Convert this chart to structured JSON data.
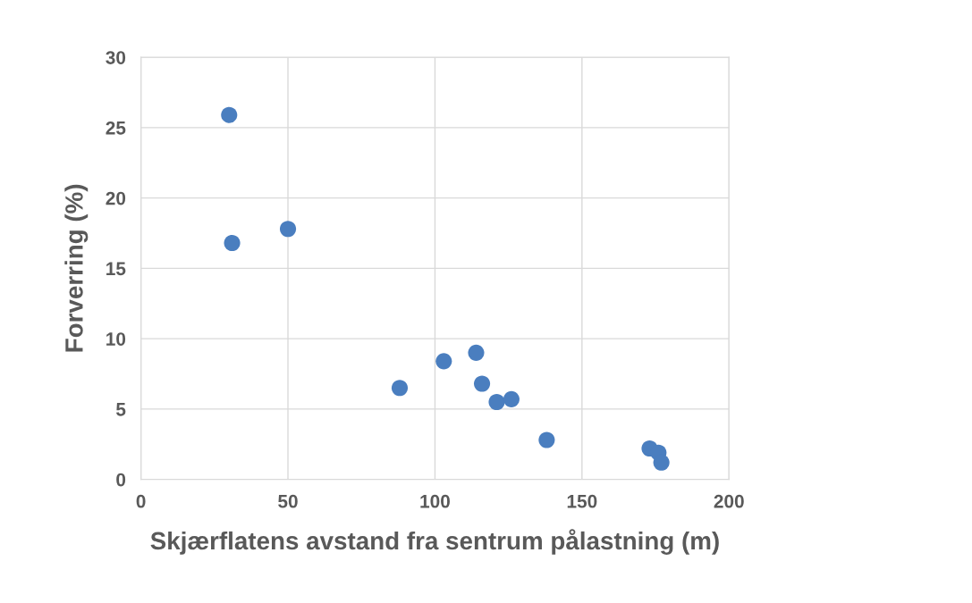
{
  "chart_data": {
    "type": "scatter",
    "xlabel": "Skjærflatens avstand fra sentrum pålastning (m)",
    "ylabel": "Forverring (%)",
    "x": [
      30,
      31,
      50,
      88,
      103,
      114,
      116,
      121,
      126,
      138,
      173,
      176,
      177
    ],
    "series": [
      {
        "color": "#4a7ebf",
        "values": [
          25.9,
          16.8,
          17.8,
          6.5,
          8.4,
          9.0,
          6.8,
          5.5,
          5.7,
          2.8,
          2.2,
          1.9,
          1.2
        ]
      }
    ],
    "xlim": [
      0,
      200
    ],
    "xticks": [
      0,
      50,
      100,
      150,
      200
    ],
    "ylim": [
      0,
      30
    ],
    "yticks": [
      0,
      5,
      10,
      15,
      20,
      25,
      30
    ],
    "grid": true,
    "marker": "circle",
    "legend": false
  }
}
